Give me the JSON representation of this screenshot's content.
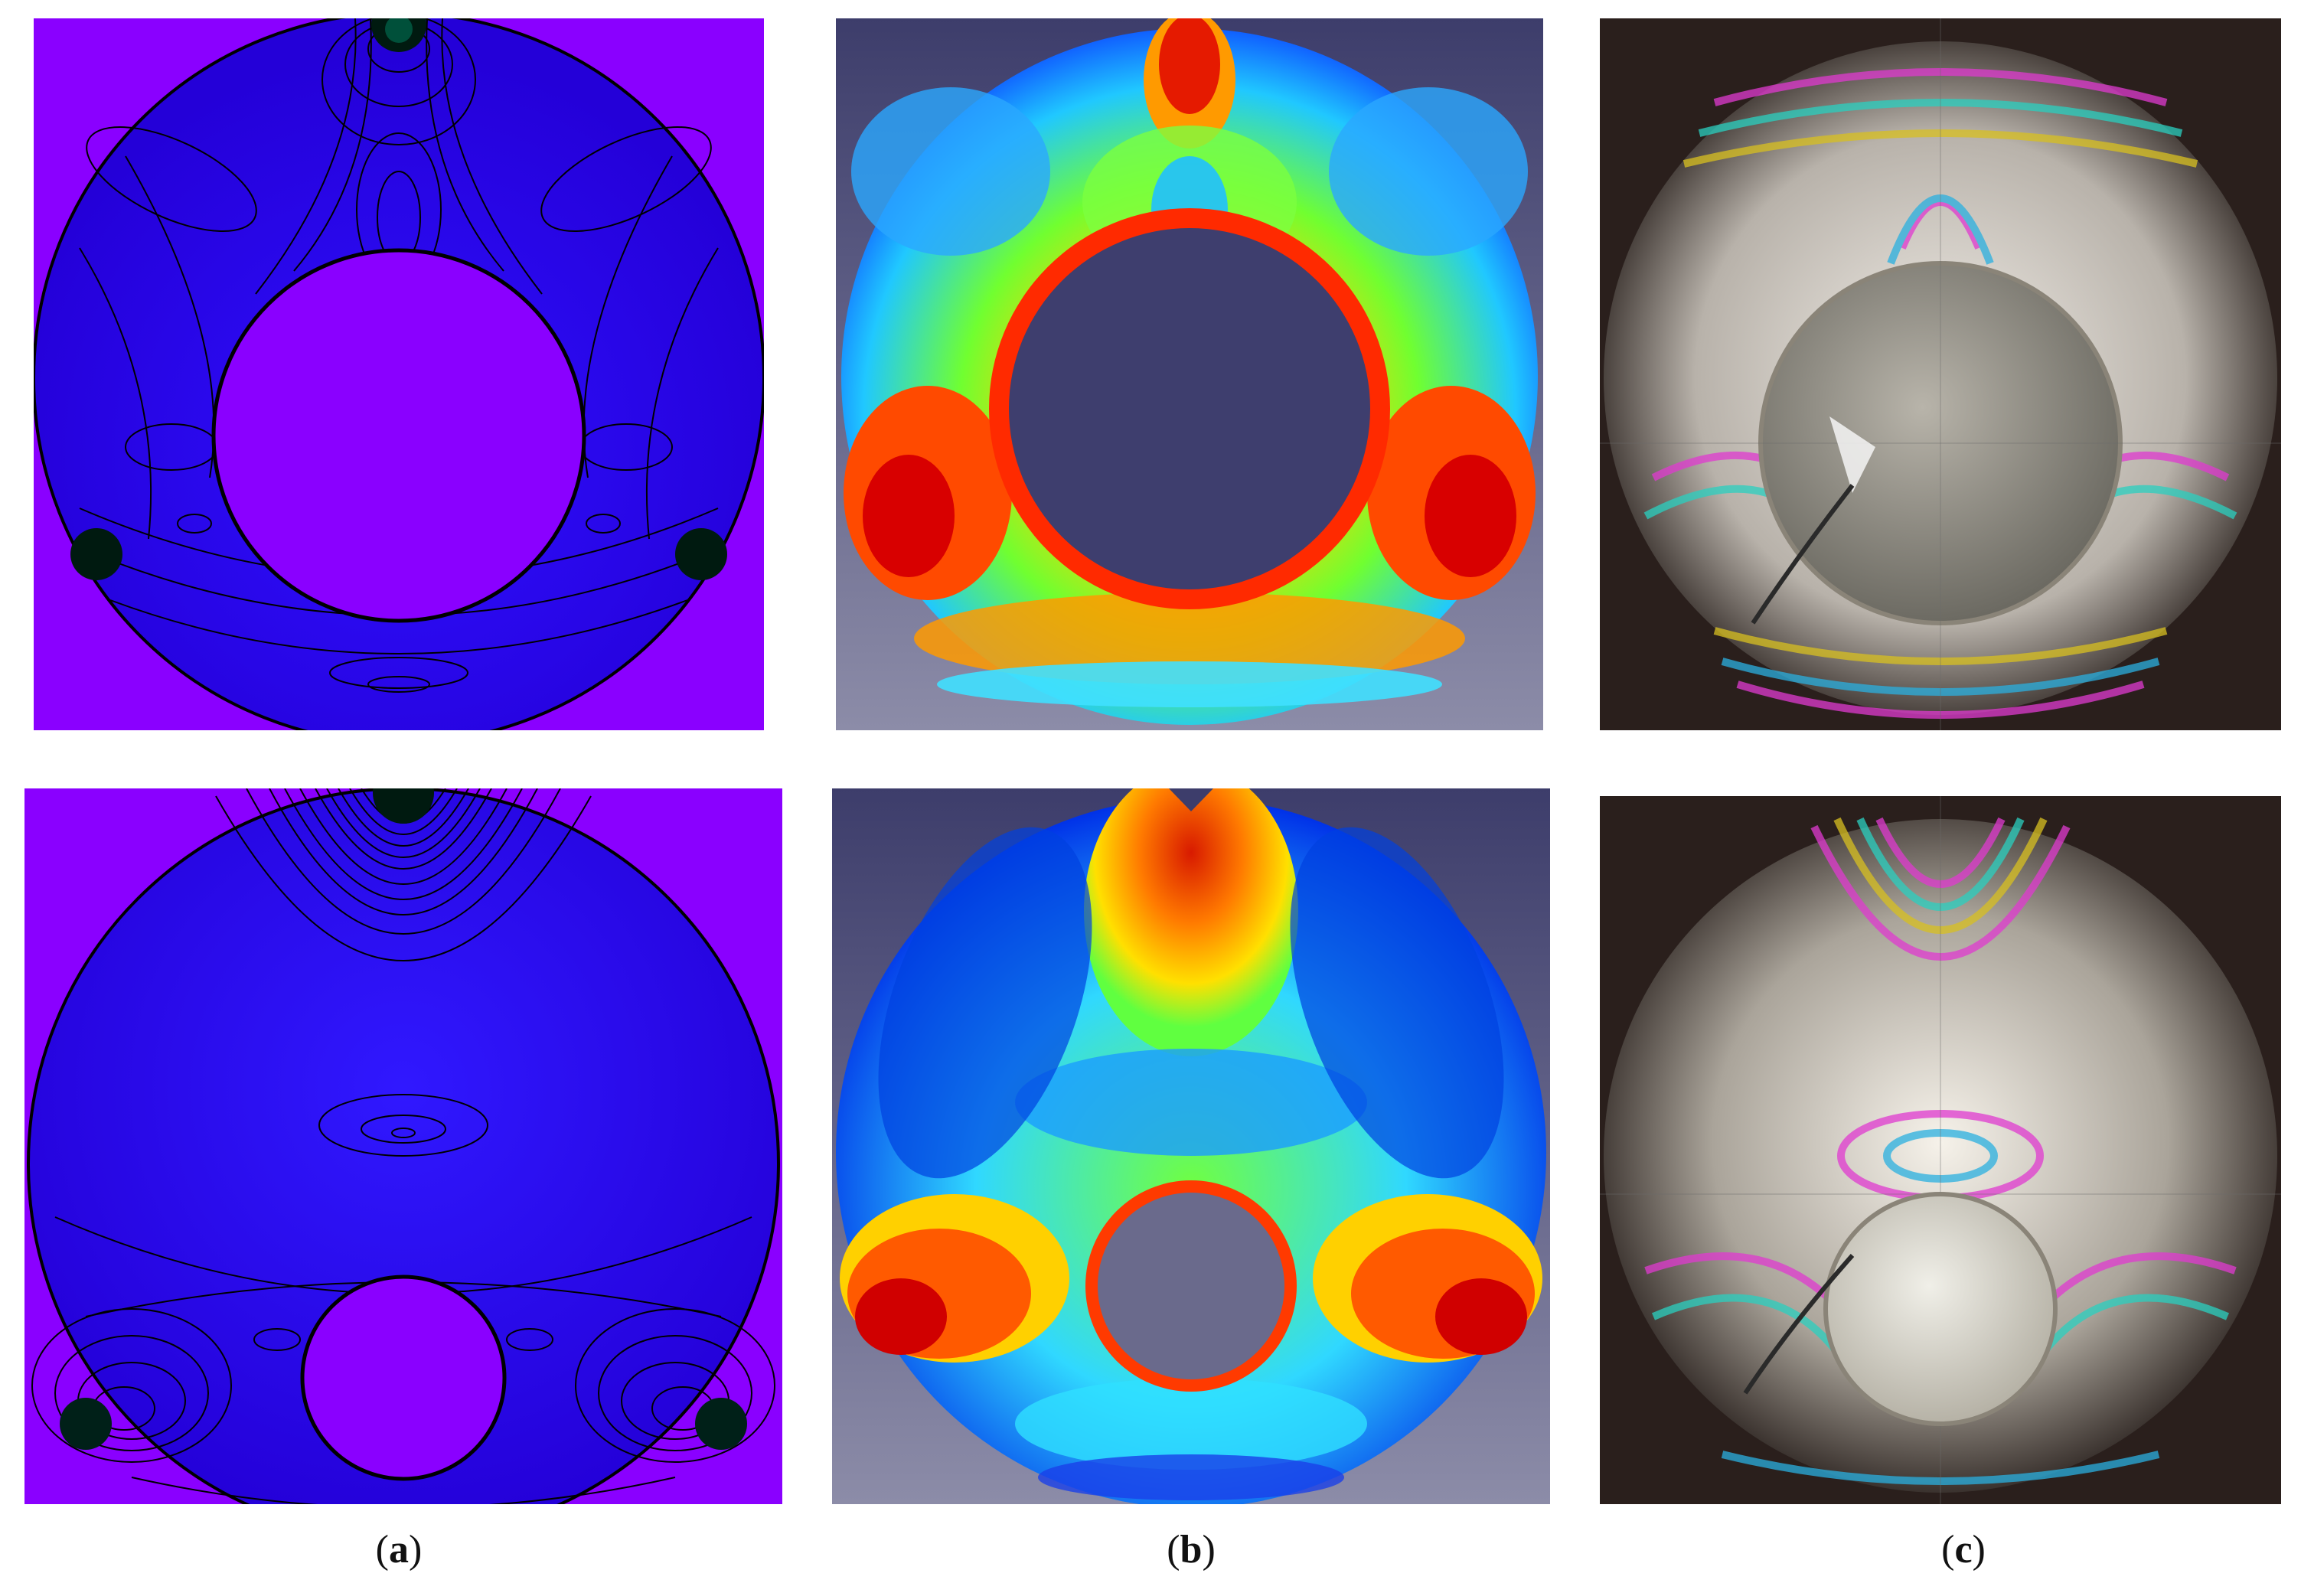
{
  "figure": {
    "panels": [
      {
        "row": "top",
        "column": "a",
        "description_name": "analytical-isochromatic-contour-plot",
        "hole_size": "large"
      },
      {
        "row": "top",
        "column": "b",
        "description_name": "fem-stress-color-map",
        "hole_size": "large"
      },
      {
        "row": "top",
        "column": "c",
        "description_name": "photoelastic-fringe-photo",
        "hole_size": "large"
      },
      {
        "row": "bottom",
        "column": "a",
        "description_name": "analytical-isochromatic-contour-plot",
        "hole_size": "small"
      },
      {
        "row": "bottom",
        "column": "b",
        "description_name": "fem-stress-color-map",
        "hole_size": "small"
      },
      {
        "row": "bottom",
        "column": "c",
        "description_name": "photoelastic-fringe-photo",
        "hole_size": "small"
      }
    ],
    "captions": [
      {
        "open": "(",
        "letter": "a",
        "close": ")"
      },
      {
        "open": "(",
        "letter": "b",
        "close": ")"
      },
      {
        "open": "(",
        "letter": "c",
        "close": ")"
      }
    ],
    "colors": {
      "contour_background": "#8a00ff",
      "contour_disk": "#2a00f0",
      "fem_background_top": "#3d3d6b",
      "fem_background_bottom": "#8c8ca8",
      "photo_background": "#2a1f1c"
    }
  }
}
